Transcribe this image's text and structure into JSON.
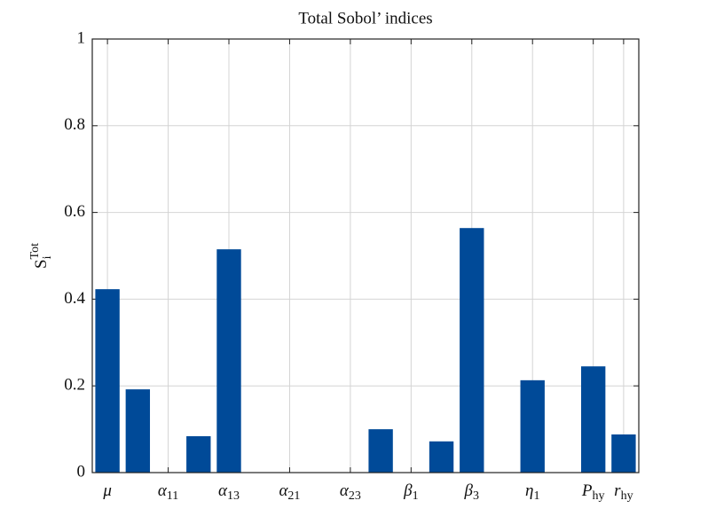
{
  "chart_data": {
    "type": "bar",
    "title": "Total Sobol’ indices",
    "ylabel": {
      "text": "S",
      "sub": "i",
      "sup": "Tot"
    },
    "categories": [
      {
        "text": "μ"
      },
      null,
      {
        "text": "α",
        "sub": "11"
      },
      null,
      {
        "text": "α",
        "sub": "13"
      },
      null,
      {
        "text": "α",
        "sub": "21"
      },
      null,
      {
        "text": "α",
        "sub": "23"
      },
      null,
      {
        "text": "β",
        "sub": "1"
      },
      null,
      {
        "text": "β",
        "sub": "3"
      },
      null,
      {
        "text": "η",
        "sub": "1"
      },
      null,
      {
        "text": "P",
        "sub": "hy"
      },
      {
        "text": "r",
        "sub": "hy"
      }
    ],
    "values": [
      0.423,
      0.192,
      0,
      0.084,
      0.515,
      0,
      0,
      0,
      0,
      0.1,
      0,
      0.072,
      0.564,
      0,
      0.213,
      0,
      0.245,
      0.088
    ],
    "color": "#004a98",
    "ylim": [
      0,
      1
    ],
    "yticks": [
      0,
      0.2,
      0.4,
      0.6,
      0.8,
      1
    ],
    "grid": true
  }
}
